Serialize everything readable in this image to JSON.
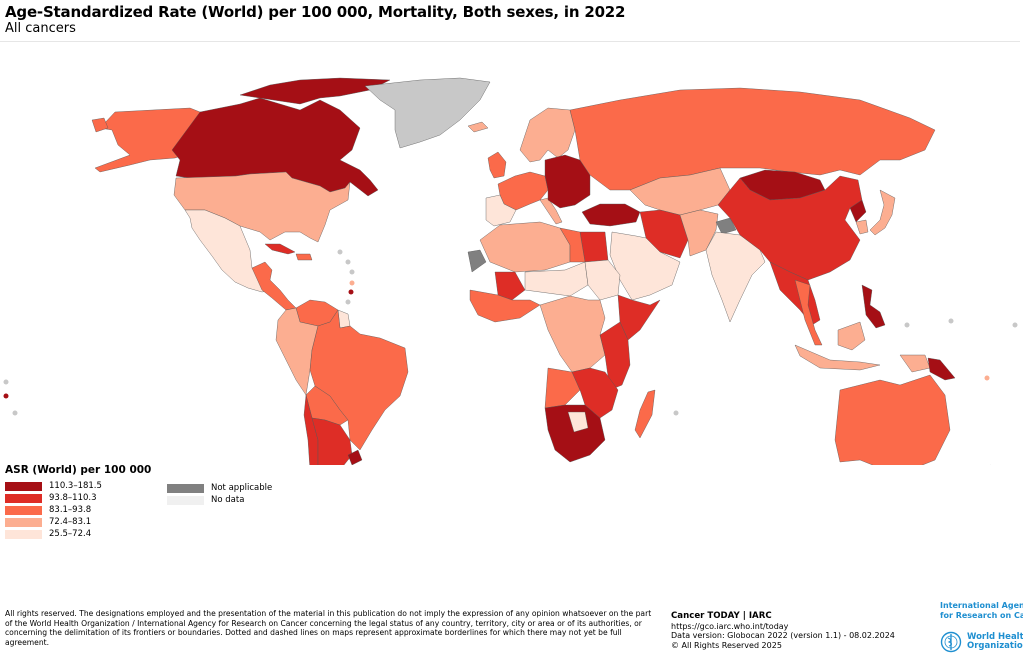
{
  "header": {
    "title": "Age-Standardized Rate (World) per 100 000, Mortality, Both sexes, in 2022",
    "subtitle": "All cancers"
  },
  "legend": {
    "title": "ASR (World) per 100 000",
    "bins": [
      {
        "label": "110.3–181.5",
        "color": "#a50f15"
      },
      {
        "label": "93.8–110.3",
        "color": "#de2d26"
      },
      {
        "label": "83.1–93.8",
        "color": "#fb6a4a"
      },
      {
        "label": "72.4–83.1",
        "color": "#fcae91"
      },
      {
        "label": "25.5–72.4",
        "color": "#fee5d9"
      }
    ],
    "other": [
      {
        "label": "Not applicable",
        "color": "#808080"
      },
      {
        "label": "No data",
        "color": "#f0f0f0"
      }
    ]
  },
  "map": {
    "regions": [
      {
        "name": "Canada",
        "bin": 1
      },
      {
        "name": "United States",
        "bin": 3
      },
      {
        "name": "Alaska",
        "bin": 3
      },
      {
        "name": "Greenland",
        "bin": "nodata"
      },
      {
        "name": "Mexico",
        "bin": 4
      },
      {
        "name": "Central America",
        "bin": 3
      },
      {
        "name": "Cuba",
        "bin": 1
      },
      {
        "name": "Colombia/Peru/Ecuador",
        "bin": 3
      },
      {
        "name": "Venezuela",
        "bin": 2
      },
      {
        "name": "Brazil",
        "bin": 2
      },
      {
        "name": "Bolivia/Paraguay",
        "bin": 2
      },
      {
        "name": "Argentina",
        "bin": 1
      },
      {
        "name": "Chile",
        "bin": 2
      },
      {
        "name": "Uruguay",
        "bin": 0
      },
      {
        "name": "Western Europe",
        "bin": 2
      },
      {
        "name": "Iberia",
        "bin": 4
      },
      {
        "name": "Scandinavia",
        "bin": 3
      },
      {
        "name": "Central/Eastern Europe",
        "bin": 0
      },
      {
        "name": "Russia",
        "bin": 2
      },
      {
        "name": "Turkey",
        "bin": 0
      },
      {
        "name": "Kazakhstan/Central Asia",
        "bin": 3
      },
      {
        "name": "Iran",
        "bin": 1
      },
      {
        "name": "Arabian Peninsula",
        "bin": 4
      },
      {
        "name": "India",
        "bin": 4
      },
      {
        "name": "Kashmir",
        "bin": "na"
      },
      {
        "name": "Mongolia",
        "bin": 0
      },
      {
        "name": "China",
        "bin": 1
      },
      {
        "name": "Japan",
        "bin": 3
      },
      {
        "name": "Korea",
        "bin": 3
      },
      {
        "name": "North Korea",
        "bin": 0
      },
      {
        "name": "Southeast Asia",
        "bin": 1
      },
      {
        "name": "Philippines",
        "bin": 0
      },
      {
        "name": "Indonesia",
        "bin": 3
      },
      {
        "name": "Papua New Guinea",
        "bin": 0
      },
      {
        "name": "Australia",
        "bin": 2
      },
      {
        "name": "New Zealand",
        "bin": 1
      },
      {
        "name": "North Africa",
        "bin": 3
      },
      {
        "name": "Egypt",
        "bin": 1
      },
      {
        "name": "Western Sahara",
        "bin": "na"
      },
      {
        "name": "West Africa",
        "bin": 2
      },
      {
        "name": "Mali",
        "bin": 1
      },
      {
        "name": "Niger/Chad",
        "bin": 4
      },
      {
        "name": "Sudan",
        "bin": 4
      },
      {
        "name": "Central Africa",
        "bin": 3
      },
      {
        "name": "Horn of Africa",
        "bin": 1
      },
      {
        "name": "East Africa",
        "bin": 1
      },
      {
        "name": "Angola",
        "bin": 2
      },
      {
        "name": "Southern Africa",
        "bin": 0
      },
      {
        "name": "Botswana",
        "bin": 4
      },
      {
        "name": "Madagascar",
        "bin": 2
      }
    ]
  },
  "footer": {
    "disclaimer": "All rights reserved. The designations employed and the presentation of the material in this publication do not imply the expression of any opinion whatsoever on the part of the World Health Organization / International Agency for Research on Cancer concerning the legal status of any country, territory, city or area or of its authorities, or concerning the delimitation of its frontiers or boundaries. Dotted and dashed lines on maps represent approximate borderlines for which there may not yet be full agreement.",
    "credit_title": "Cancer TODAY | IARC",
    "credit_url": "https://gco.iarc.who.int/today",
    "credit_version": "Data version: Globocan 2022 (version 1.1) - 08.02.2024",
    "credit_rights": "© All Rights Reserved 2025",
    "iarc_line1": "International Agency",
    "iarc_line2": "for Research on Cancer",
    "who_line1": "World Health",
    "who_line2": "Organization"
  }
}
